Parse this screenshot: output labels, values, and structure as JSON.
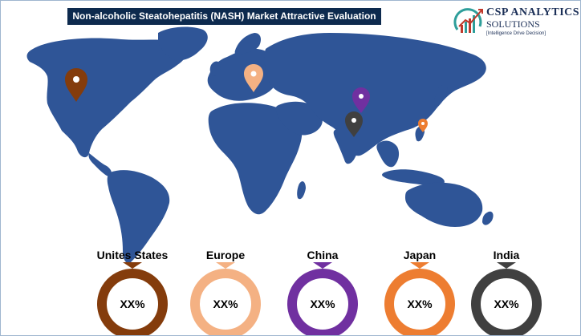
{
  "title": "Non-alcoholic Steatohepatitis (NASH) Market Attractive Evaluation",
  "logo": {
    "name": "CSP ANALYTICS",
    "sub": "SOLUTIONS",
    "tagline": "[Intelligence Drive Decision]"
  },
  "colors": {
    "title_bg": "#0d2a4e",
    "map_land": "#2f5597",
    "us": "#843c0c",
    "europe": "#f4b183",
    "china": "#7030a0",
    "japan": "#ed7d31",
    "india": "#404040"
  },
  "regions": [
    {
      "name": "Unites States",
      "value": "XX%",
      "color": "#843c0c",
      "icon": "map-pin-icon"
    },
    {
      "name": "Europe",
      "value": "XX%",
      "color": "#f4b183",
      "icon": "map-pin-icon"
    },
    {
      "name": "China",
      "value": "XX%",
      "color": "#7030a0",
      "icon": "map-pin-icon"
    },
    {
      "name": "Japan",
      "value": "XX%",
      "color": "#ed7d31",
      "icon": "map-pin-icon"
    },
    {
      "name": "India",
      "value": "XX%",
      "color": "#404040",
      "icon": "map-pin-icon"
    }
  ]
}
